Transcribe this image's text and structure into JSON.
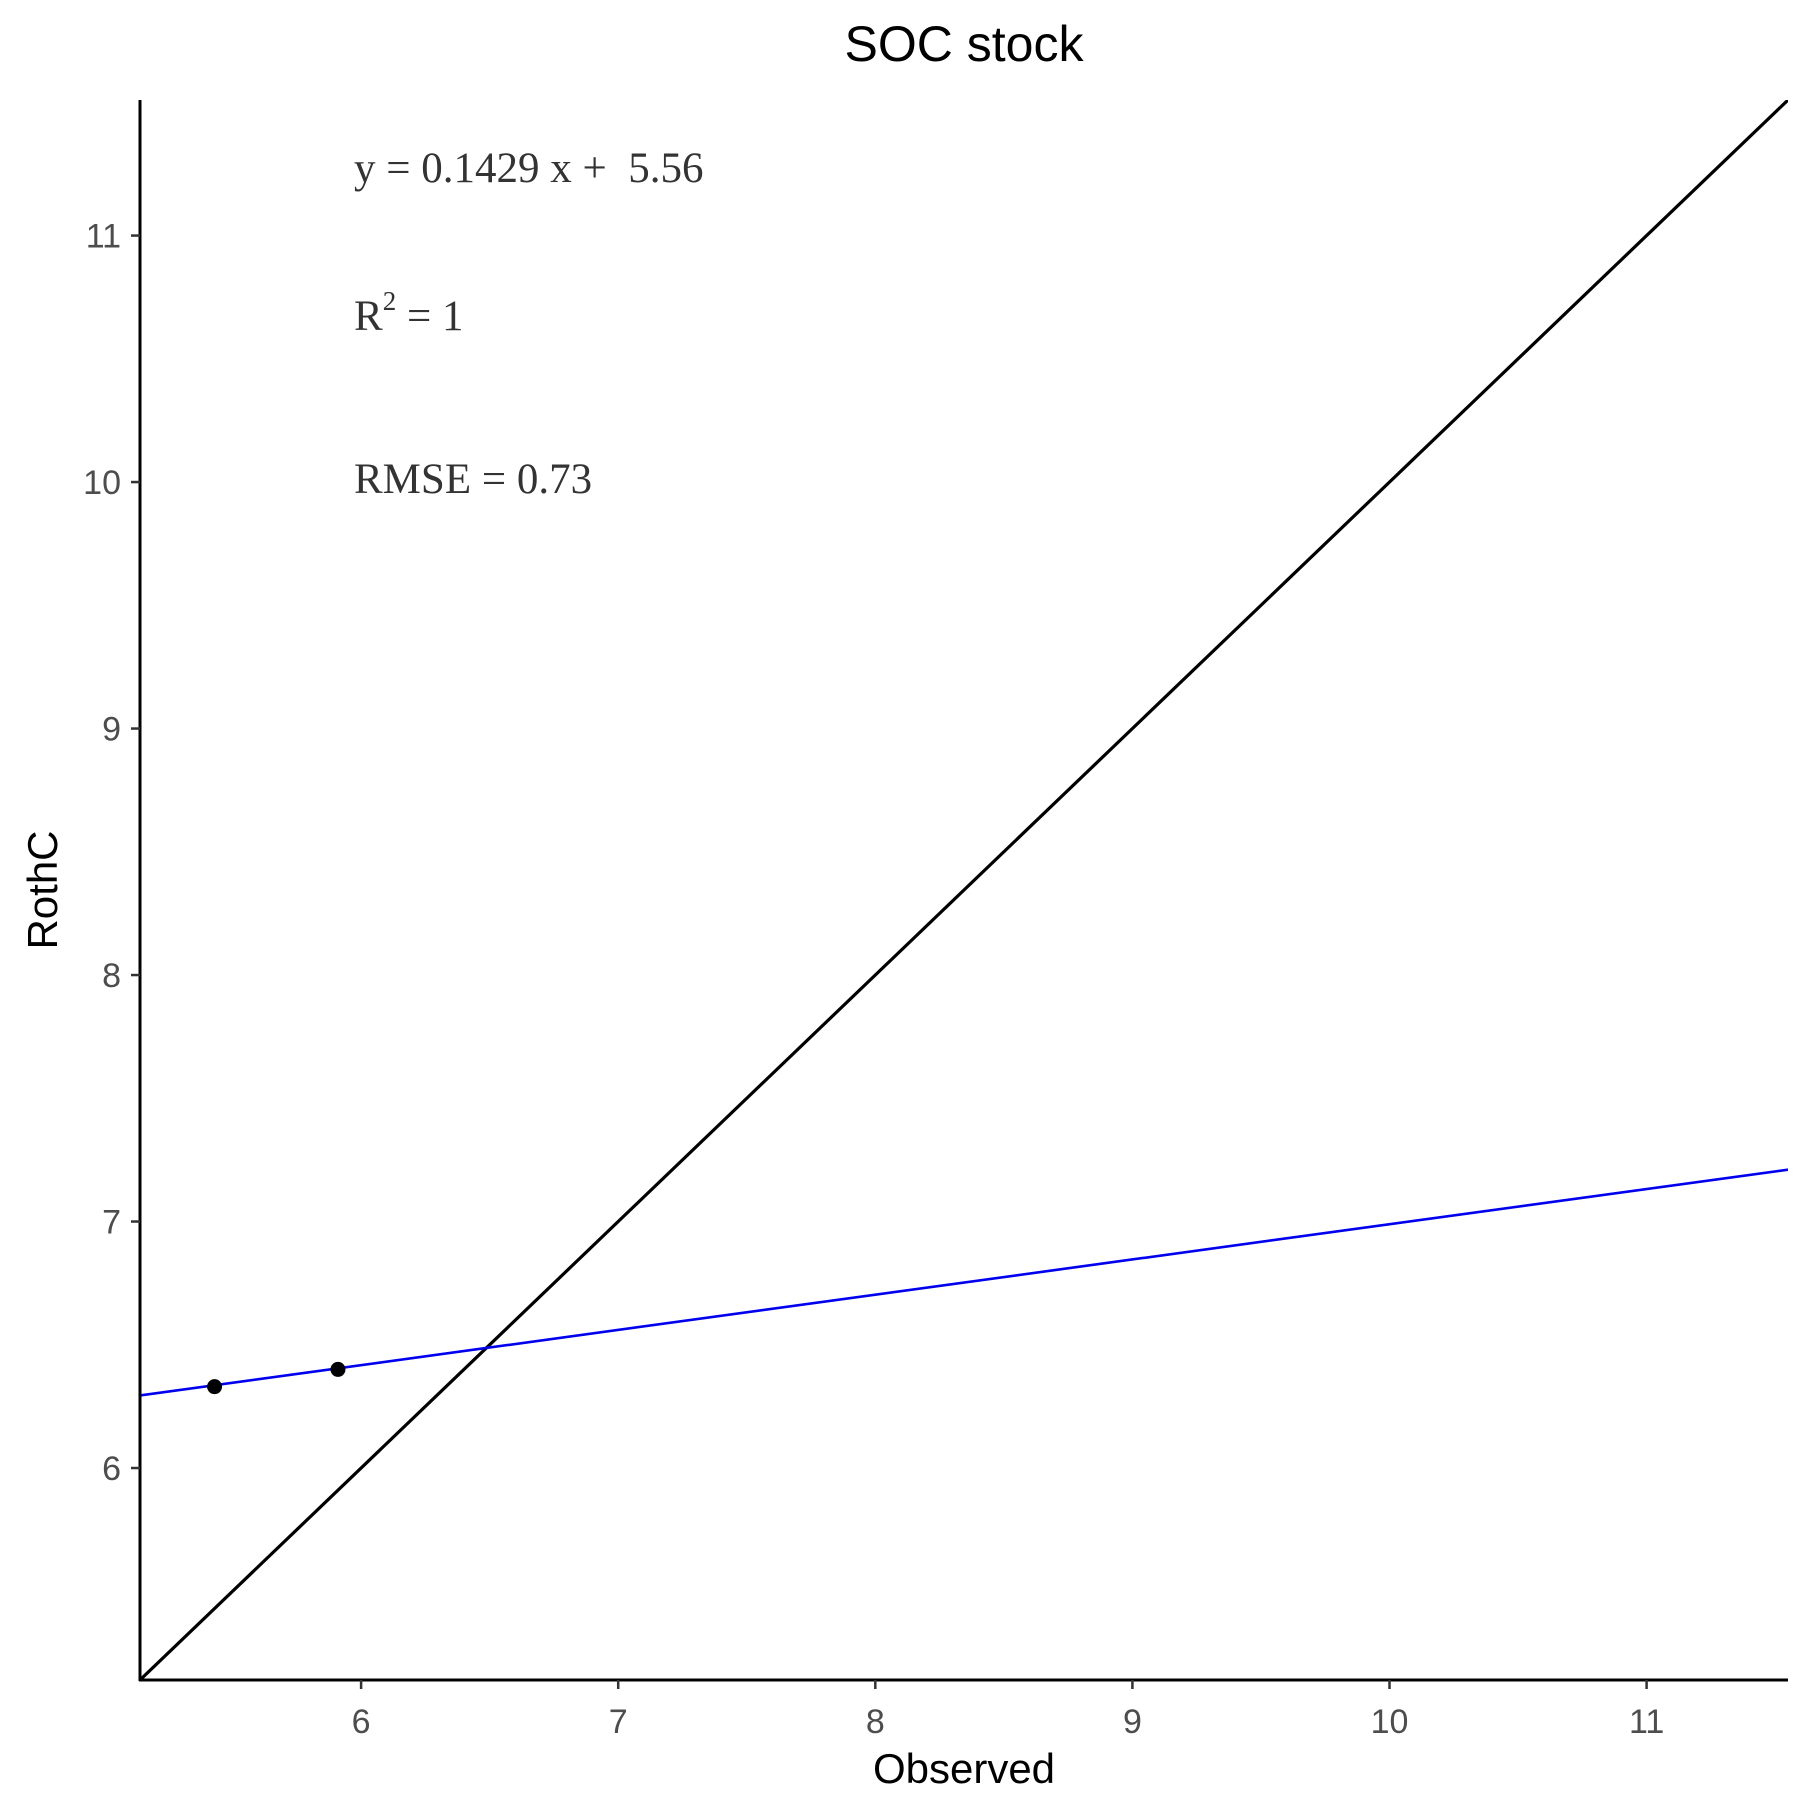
{
  "chart_data": {
    "type": "scatter",
    "title": "SOC stock",
    "xlabel": "Observed",
    "ylabel": "RothC",
    "xlim": [
      5.14,
      11.55
    ],
    "ylim": [
      5.14,
      11.55
    ],
    "x_ticks": [
      6,
      7,
      8,
      9,
      10,
      11
    ],
    "y_ticks": [
      6,
      7,
      8,
      9,
      10,
      11
    ],
    "grid": false,
    "series": [
      {
        "points": [
          {
            "x": 5.43,
            "y": 6.33
          },
          {
            "x": 5.91,
            "y": 6.4
          }
        ],
        "color": "#000000"
      }
    ],
    "lines": [
      {
        "kind": "identity",
        "slope": 1,
        "intercept": 0,
        "color": "#000000"
      },
      {
        "kind": "regression",
        "slope": 0.1429,
        "intercept": 5.56,
        "color": "#0000ee"
      }
    ],
    "annotations": {
      "equation": "y = 0.1429 x +  5.56",
      "r2_base": "R",
      "r2_sup": "2",
      "r2_rest": " = 1",
      "rmse": "RMSE = 0.73"
    }
  }
}
